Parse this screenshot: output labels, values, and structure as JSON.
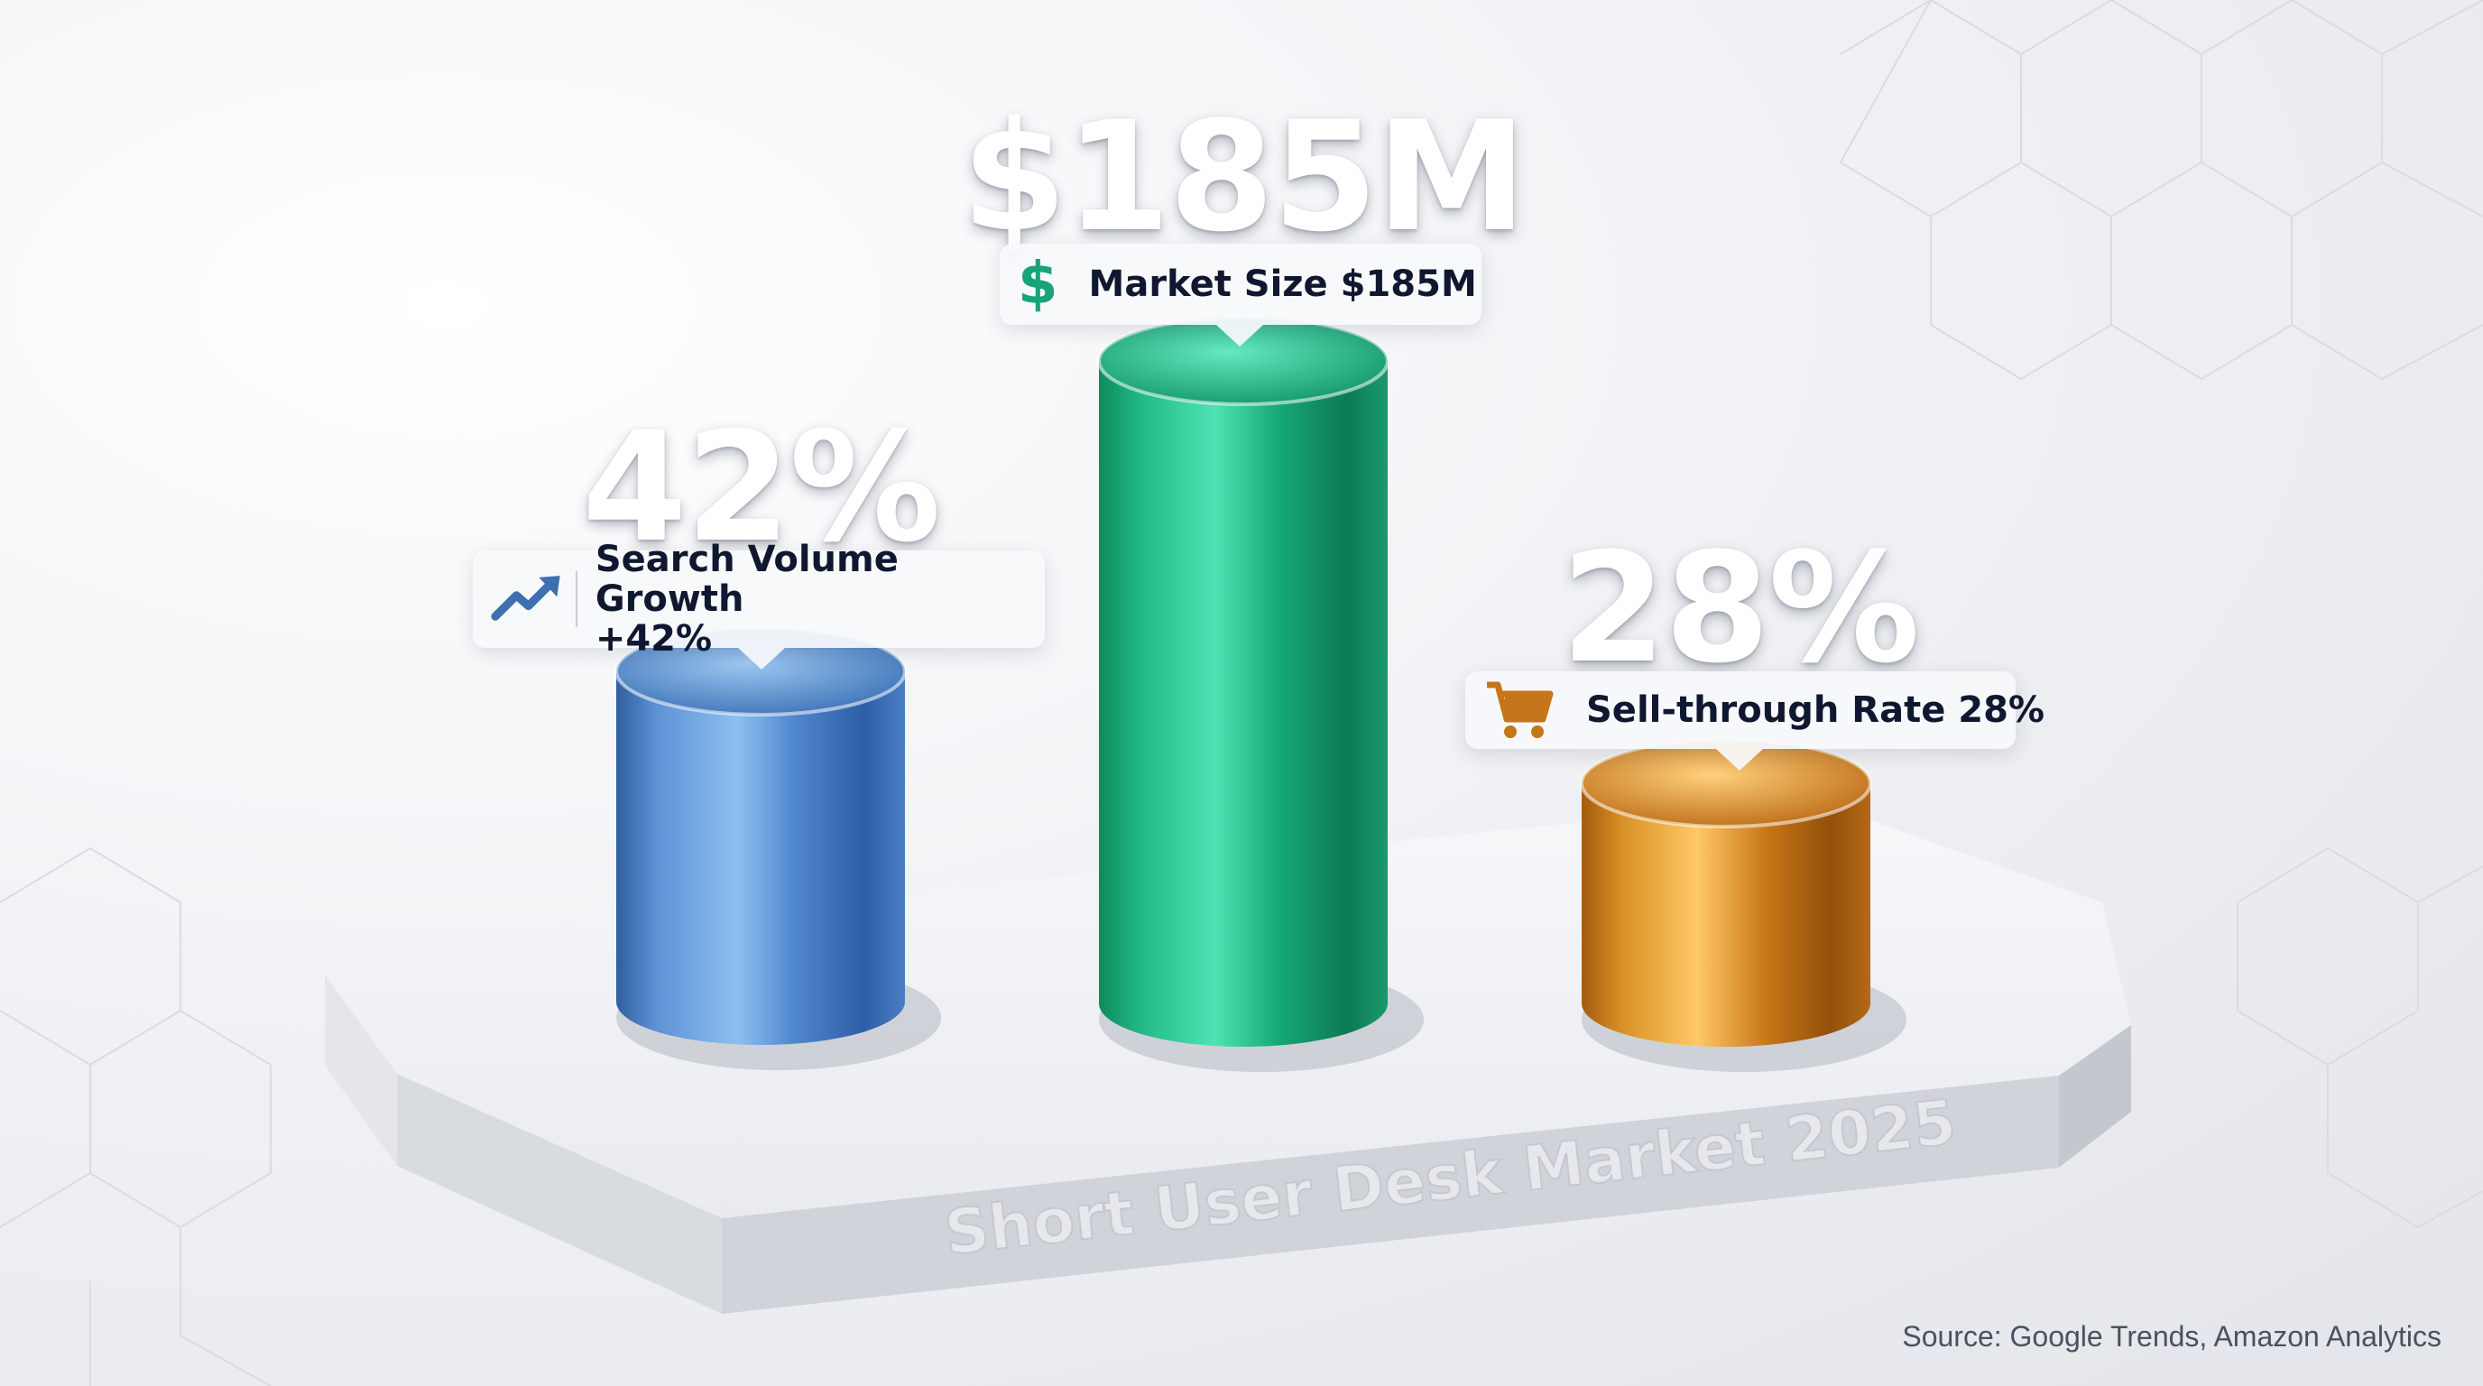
{
  "chart_data": {
    "type": "bar",
    "title": "Short User Desk Market 2025",
    "categories": [
      "Search Volume Growth",
      "Market Size",
      "Sell-through Rate"
    ],
    "values": [
      42,
      185,
      28
    ],
    "units": [
      "%",
      "$M",
      "%"
    ],
    "display_values": [
      "42%",
      "$185M",
      "28%"
    ],
    "labels": [
      "Search Volume Growth\n+42%",
      "Market Size $185M",
      "Sell-through Rate 28%"
    ],
    "icons": [
      "trending-up-icon",
      "dollar-icon",
      "shopping-cart-icon"
    ],
    "colors": [
      "#4a86cc",
      "#1bb57e",
      "#d28a1d"
    ],
    "style": "3d-cylinders-on-pedestal",
    "grid": false,
    "legend": "none"
  },
  "source": "Source: Google Trends, Amazon Analytics"
}
